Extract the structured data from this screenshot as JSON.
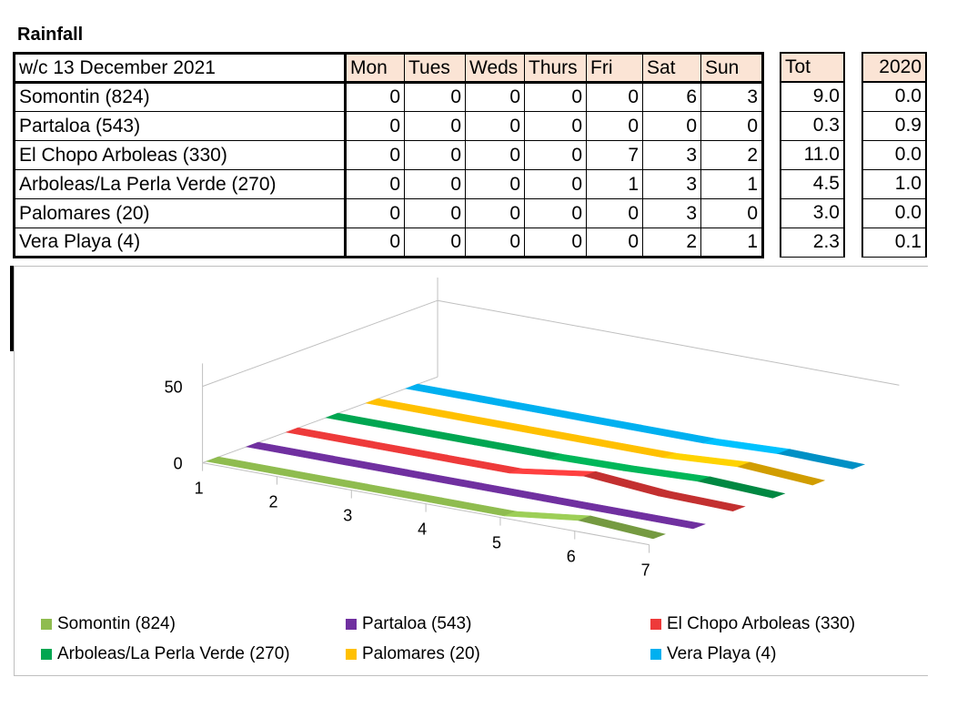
{
  "title": "Rainfall",
  "table": {
    "corner": "w/c 13 December 2021",
    "days": [
      "Mon",
      "Tues",
      "Weds",
      "Thurs",
      "Fri",
      "Sat",
      "Sun"
    ],
    "tot_header": "Tot",
    "prev_header": "2020",
    "rows": [
      {
        "site": "Somontin (824)",
        "days": [
          "0",
          "0",
          "0",
          "0",
          "0",
          "6",
          "3"
        ],
        "tot": "9.0",
        "prev": "0.0"
      },
      {
        "site": "Partaloa (543)",
        "days": [
          "0",
          "0",
          "0",
          "0",
          "0",
          "0",
          "0"
        ],
        "tot": "0.3",
        "prev": "0.9"
      },
      {
        "site": "El Chopo Arboleas (330)",
        "days": [
          "0",
          "0",
          "0",
          "0",
          "7",
          "3",
          "2"
        ],
        "tot": "11.0",
        "prev": "0.0"
      },
      {
        "site": "Arboleas/La Perla Verde (270)",
        "days": [
          "0",
          "0",
          "0",
          "0",
          "1",
          "3",
          "1"
        ],
        "tot": "4.5",
        "prev": "1.0"
      },
      {
        "site": "Palomares (20)",
        "days": [
          "0",
          "0",
          "0",
          "0",
          "0",
          "3",
          "0"
        ],
        "tot": "3.0",
        "prev": "0.0"
      },
      {
        "site": "Vera Playa (4)",
        "days": [
          "0",
          "0",
          "0",
          "0",
          "0",
          "2",
          "1"
        ],
        "tot": "2.3",
        "prev": "0.1"
      }
    ]
  },
  "chart_data": {
    "type": "line",
    "style": "3d-ribbon",
    "x": [
      1,
      2,
      3,
      4,
      5,
      6,
      7
    ],
    "x_tick_labels": [
      "1",
      "2",
      "3",
      "4",
      "5",
      "6",
      "7"
    ],
    "y_tick_labels": [
      "0",
      "50"
    ],
    "ylim": [
      0,
      50
    ],
    "series": [
      {
        "name": "Somontin (824)",
        "values": [
          0,
          0,
          0,
          0,
          0,
          6,
          3
        ],
        "color": "#8fbc4f"
      },
      {
        "name": "Partaloa (543)",
        "values": [
          0,
          0,
          0,
          0,
          0,
          0,
          0
        ],
        "color": "#7030a0"
      },
      {
        "name": "El Chopo Arboleas (330)",
        "values": [
          0,
          0,
          0,
          0,
          7,
          3,
          2
        ],
        "color": "#ee3a3a"
      },
      {
        "name": "Arboleas/La Perla Verde (270)",
        "values": [
          0,
          0,
          0,
          0,
          1,
          3,
          1
        ],
        "color": "#00a651"
      },
      {
        "name": "Palomares (20)",
        "values": [
          0,
          0,
          0,
          0,
          0,
          3,
          0
        ],
        "color": "#ffc000"
      },
      {
        "name": "Vera Playa (4)",
        "values": [
          0,
          0,
          0,
          0,
          0,
          2,
          1
        ],
        "color": "#00b0f0"
      }
    ],
    "legend_position": "bottom",
    "grid": false
  }
}
